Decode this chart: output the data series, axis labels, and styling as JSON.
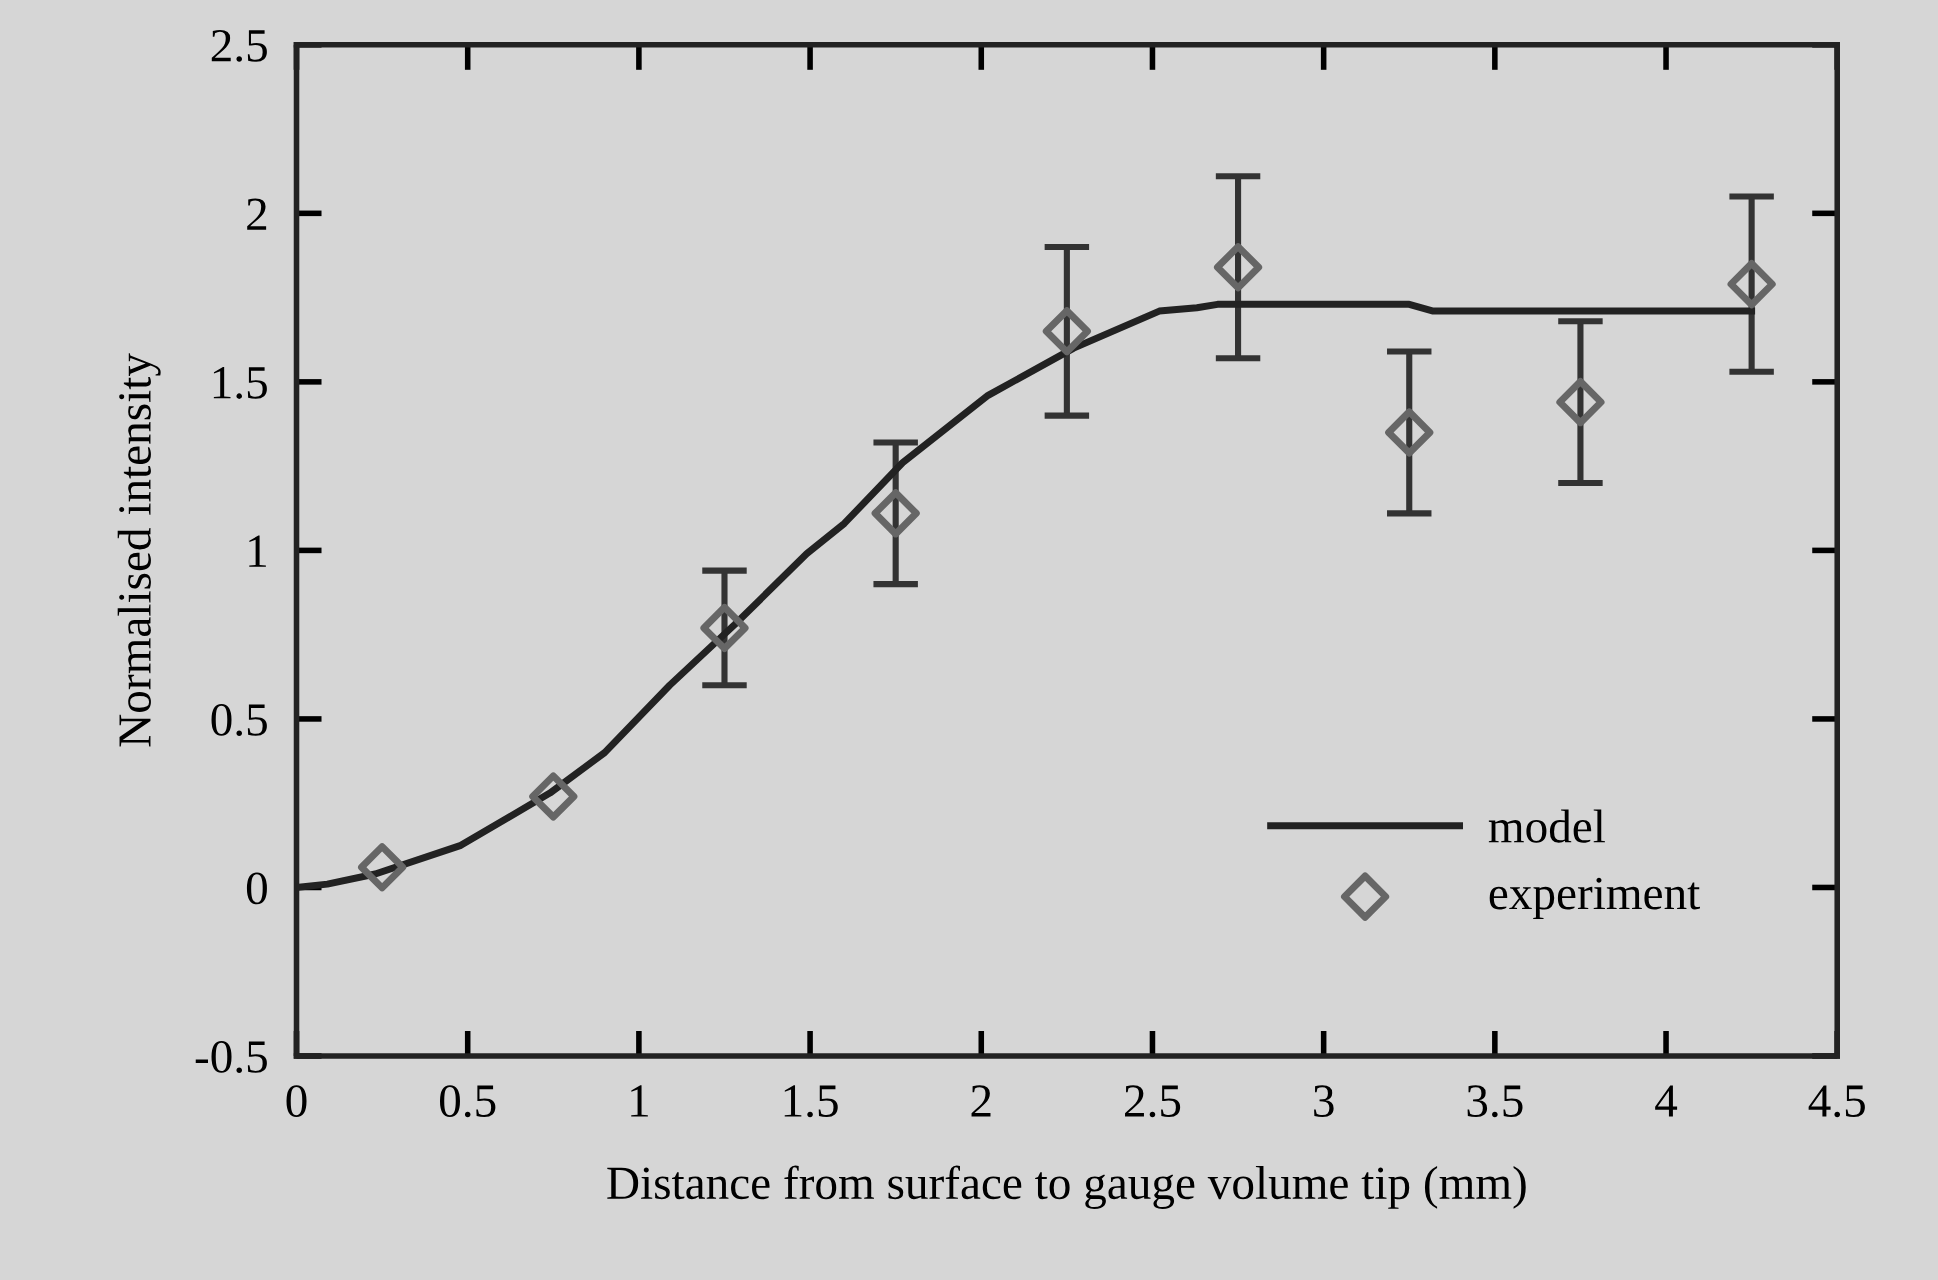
{
  "chart_data": {
    "type": "line",
    "xlabel": "Distance from surface to gauge volume tip (mm)",
    "ylabel": "Normalised intensity",
    "series": [
      {
        "name": "model",
        "color": "#222222",
        "marker": "none",
        "line_style": "solid",
        "x": [
          0,
          0.09,
          0.23,
          0.48,
          0.74,
          0.9,
          1.09,
          1.28,
          1.49,
          1.6,
          1.77,
          2.02,
          2.27,
          2.52,
          2.63,
          2.69,
          3.25,
          3.32,
          4.25
        ],
        "values": [
          0,
          0.01,
          0.04,
          0.125,
          0.28,
          0.4,
          0.6,
          0.78,
          0.99,
          1.08,
          1.26,
          1.46,
          1.6,
          1.71,
          1.72,
          1.73,
          1.73,
          1.71,
          1.71
        ]
      },
      {
        "name": "experiment",
        "type": "scatter",
        "color": "#666666",
        "marker": "diamond",
        "x": [
          0.25,
          0.75,
          1.25,
          1.75,
          2.25,
          2.75,
          3.25,
          3.75,
          4.25
        ],
        "values": [
          0.06,
          0.27,
          0.77,
          1.11,
          1.65,
          1.84,
          1.35,
          1.44,
          1.79
        ],
        "errors": [
          null,
          null,
          0.17,
          0.21,
          0.25,
          0.27,
          0.24,
          0.24,
          0.26
        ]
      }
    ],
    "xlim": [
      0,
      4.5
    ],
    "xticks": [
      0,
      0.5,
      1,
      1.5,
      2,
      2.5,
      3,
      3.5,
      4,
      4.5
    ],
    "ylim": [
      -0.5,
      2.5
    ],
    "yticks": [
      {
        "value": -0.5,
        "label": "-0.5"
      },
      0,
      0.5,
      1,
      1.5,
      2,
      2.5
    ],
    "grid": false,
    "legend": "bottom right"
  }
}
